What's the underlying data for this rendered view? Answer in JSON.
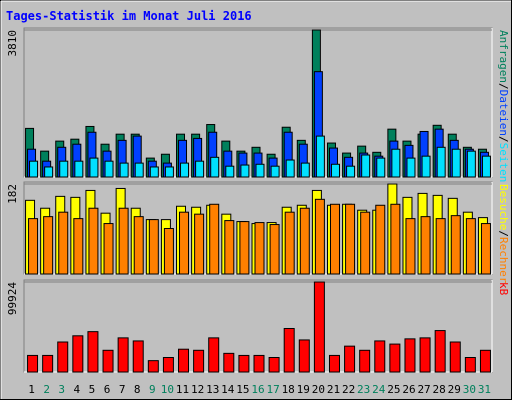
{
  "title": "Tages-Statistik im Monat Juli 2016",
  "separator": "/",
  "days": [
    1,
    2,
    3,
    4,
    5,
    6,
    7,
    8,
    9,
    10,
    11,
    12,
    13,
    14,
    15,
    16,
    17,
    18,
    19,
    20,
    21,
    22,
    23,
    24,
    25,
    26,
    27,
    28,
    29,
    30,
    31
  ],
  "weekend_days": [
    2,
    3,
    9,
    10,
    16,
    17,
    23,
    24,
    30,
    31
  ],
  "weekday_color": "#000000",
  "weekend_color": "#00805c",
  "chart_data": [
    {
      "type": "bar",
      "ylim": [
        0,
        3810
      ],
      "yticks": [
        3810
      ],
      "series": [
        {
          "name": "Anfragen",
          "color": "#00805c",
          "values": [
            1260,
            670,
            930,
            980,
            1310,
            850,
            1110,
            1110,
            490,
            590,
            1110,
            1110,
            1360,
            930,
            670,
            770,
            590,
            1290,
            950,
            3810,
            880,
            620,
            800,
            640,
            1240,
            930,
            1110,
            1340,
            1110,
            770,
            720
          ]
        },
        {
          "name": "Dateien",
          "color": "#0040ff",
          "values": [
            720,
            410,
            770,
            850,
            1160,
            670,
            950,
            1060,
            410,
            360,
            950,
            1000,
            1160,
            670,
            620,
            620,
            490,
            1160,
            850,
            2730,
            750,
            510,
            620,
            540,
            930,
            820,
            1180,
            1240,
            950,
            720,
            640
          ]
        },
        {
          "name": "Seiten",
          "color": "#00e0ff",
          "values": [
            410,
            260,
            410,
            410,
            490,
            410,
            360,
            360,
            260,
            260,
            360,
            410,
            510,
            280,
            310,
            330,
            280,
            440,
            360,
            1060,
            330,
            280,
            570,
            490,
            720,
            490,
            540,
            770,
            720,
            670,
            540
          ]
        }
      ]
    },
    {
      "type": "bar",
      "ylim": [
        0,
        182
      ],
      "yticks": [
        182
      ],
      "series": [
        {
          "name": "Besuche",
          "color": "#ffff00",
          "values": [
            149,
            133,
            157,
            155,
            169,
            123,
            173,
            133,
            110,
            110,
            137,
            135,
            139,
            121,
            106,
            102,
            104,
            135,
            139,
            169,
            139,
            141,
            129,
            129,
            182,
            155,
            163,
            159,
            153,
            125,
            114
          ]
        },
        {
          "name": "Rechner",
          "color": "#ff8000",
          "values": [
            112,
            116,
            125,
            112,
            133,
            102,
            133,
            116,
            110,
            92,
            125,
            121,
            141,
            108,
            106,
            104,
            100,
            125,
            133,
            151,
            141,
            141,
            125,
            139,
            141,
            112,
            116,
            112,
            118,
            112,
            102
          ]
        }
      ]
    },
    {
      "type": "bar",
      "ylim": [
        0,
        99924
      ],
      "yticks": [
        99924
      ],
      "series": [
        {
          "name": "kB",
          "color": "#ff0000",
          "values": [
            18400,
            18400,
            33300,
            40200,
            44800,
            24100,
            37900,
            34500,
            12600,
            16100,
            25300,
            24100,
            37900,
            20700,
            18400,
            18400,
            16100,
            48300,
            35600,
            99924,
            18400,
            28700,
            24100,
            34500,
            31000,
            36800,
            37900,
            46000,
            33300,
            16100,
            24100
          ]
        }
      ]
    }
  ]
}
